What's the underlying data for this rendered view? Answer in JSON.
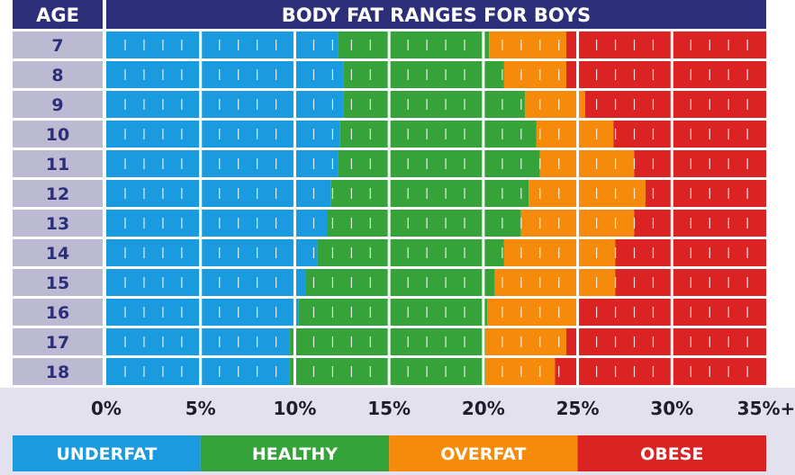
{
  "chart_data": {
    "type": "bar",
    "title": "BODY FAT RANGES FOR BOYS",
    "row_header": "AGE",
    "categories": [
      "7",
      "8",
      "9",
      "10",
      "11",
      "12",
      "13",
      "14",
      "15",
      "16",
      "17",
      "18"
    ],
    "x_ticks": [
      "0%",
      "5%",
      "10%",
      "15%",
      "20%",
      "25%",
      "30%",
      "35%+"
    ],
    "xlim": [
      0,
      35
    ],
    "series": [
      {
        "name": "UNDERFAT",
        "color": "#1a9be0"
      },
      {
        "name": "HEALTHY",
        "color": "#35a33a"
      },
      {
        "name": "OVERFAT",
        "color": "#f58a0b"
      },
      {
        "name": "OBESE",
        "color": "#dc2323"
      }
    ],
    "thresholds": [
      {
        "age": "7",
        "underfat_max": 12.3,
        "healthy_max": 20.3,
        "overfat_max": 24.4
      },
      {
        "age": "8",
        "underfat_max": 12.6,
        "healthy_max": 21.1,
        "overfat_max": 24.4
      },
      {
        "age": "9",
        "underfat_max": 12.6,
        "healthy_max": 22.2,
        "overfat_max": 25.4
      },
      {
        "age": "10",
        "underfat_max": 12.4,
        "healthy_max": 22.8,
        "overfat_max": 26.9
      },
      {
        "age": "11",
        "underfat_max": 12.3,
        "healthy_max": 23.0,
        "overfat_max": 28.0
      },
      {
        "age": "12",
        "underfat_max": 11.9,
        "healthy_max": 22.4,
        "overfat_max": 28.6
      },
      {
        "age": "13",
        "underfat_max": 11.7,
        "healthy_max": 22.0,
        "overfat_max": 28.0
      },
      {
        "age": "14",
        "underfat_max": 11.2,
        "healthy_max": 21.1,
        "overfat_max": 27.0
      },
      {
        "age": "15",
        "underfat_max": 10.6,
        "healthy_max": 20.6,
        "overfat_max": 27.0
      },
      {
        "age": "16",
        "underfat_max": 10.2,
        "healthy_max": 20.2,
        "overfat_max": 25.0
      },
      {
        "age": "17",
        "underfat_max": 9.7,
        "healthy_max": 20.1,
        "overfat_max": 24.4
      },
      {
        "age": "18",
        "underfat_max": 9.7,
        "healthy_max": 20.1,
        "overfat_max": 23.8
      }
    ],
    "grid": true,
    "legend_position": "bottom"
  }
}
